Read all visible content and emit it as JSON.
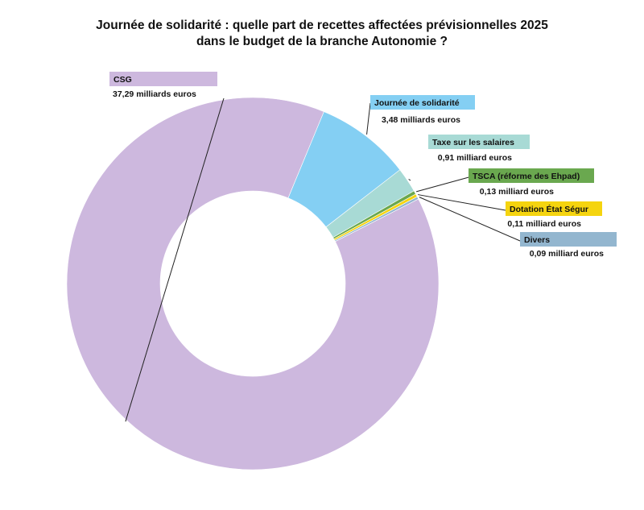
{
  "chart_data": {
    "type": "pie",
    "title_lines": [
      "Journée de solidarité : quelle part de recettes affectées prévisionnelles 2025",
      "dans le budget de la branche Autonomie ?"
    ],
    "unit": "milliards euros",
    "slices": [
      {
        "name": "CSG",
        "value": 37.29,
        "value_label": "37,29 milliards euros",
        "color": "#cdb8de"
      },
      {
        "name": "Journée de solidarité",
        "value": 3.48,
        "value_label": "3,48 milliards euros",
        "color": "#84cff3"
      },
      {
        "name": "Taxe sur les salaires",
        "value": 0.91,
        "value_label": "0,91 milliard euros",
        "color": "#a8dad5"
      },
      {
        "name": "TSCA (réforme des Ehpad)",
        "value": 0.13,
        "value_label": "0,13 milliard euros",
        "color": "#6aa84f"
      },
      {
        "name": "Dotation État Ségur",
        "value": 0.11,
        "value_label": "0,11 milliard euros",
        "color": "#f5d40f"
      },
      {
        "name": "Divers",
        "value": 0.09,
        "value_label": "0,09 milliard euros",
        "color": "#93b6cf"
      }
    ]
  }
}
